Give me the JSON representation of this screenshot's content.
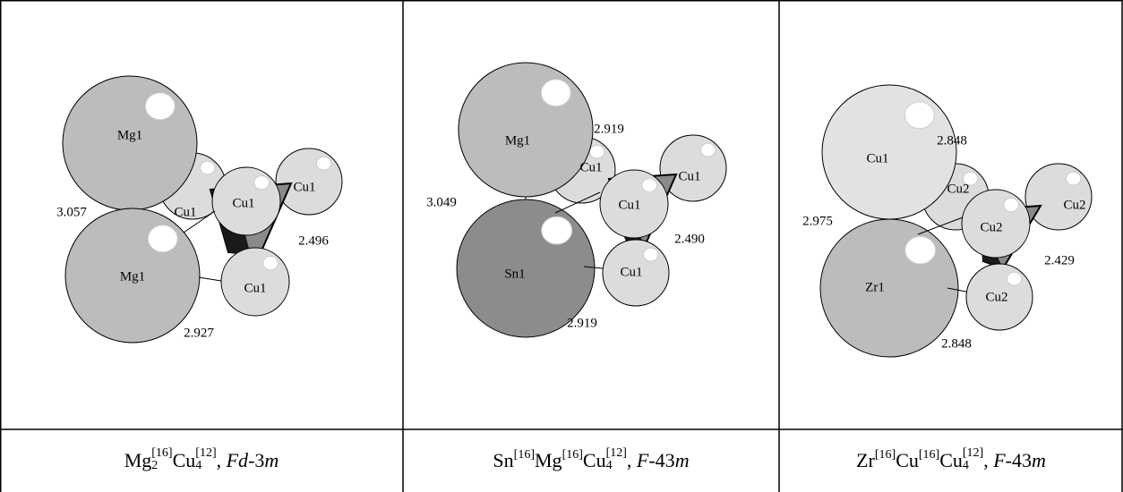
{
  "panels": [
    {
      "atoms": [
        "Mg1",
        "Mg1",
        "Cu1",
        "Cu1",
        "Cu1",
        "Cu1"
      ],
      "distances": [
        "3.057",
        "2.496",
        "2.927"
      ],
      "caption": [
        {
          "text": "Mg"
        },
        {
          "sup": "[16]",
          "sub": "2"
        },
        {
          "text": "Cu"
        },
        {
          "sup": "[12]",
          "sub": "4"
        },
        {
          "text": ", "
        },
        {
          "italic": "Fd"
        },
        {
          "text": "-3"
        },
        {
          "italic": "m"
        }
      ]
    },
    {
      "atoms": [
        "Mg1",
        "Cu1",
        "Cu1",
        "Cu1",
        "Sn1",
        "Cu1"
      ],
      "distances": [
        "2.919",
        "3.049",
        "2.490",
        "2.919"
      ],
      "caption": [
        {
          "text": "Sn"
        },
        {
          "sup": "[16]"
        },
        {
          "text": "Mg"
        },
        {
          "sup": "[16]"
        },
        {
          "text": "Cu"
        },
        {
          "sup": "[12]",
          "sub": "4"
        },
        {
          "text": ", "
        },
        {
          "italic": "F"
        },
        {
          "text": "-43"
        },
        {
          "italic": "m"
        }
      ]
    },
    {
      "atoms": [
        "Cu1",
        "Cu2",
        "Cu2",
        "Cu2",
        "Zr1",
        "Cu2"
      ],
      "distances": [
        "2.848",
        "2.975",
        "2.429",
        "2.848"
      ],
      "caption": [
        {
          "text": "Zr"
        },
        {
          "sup": "[16]"
        },
        {
          "text": "Cu"
        },
        {
          "sup": "[16]"
        },
        {
          "text": "Cu"
        },
        {
          "sup": "[12]",
          "sub": "4"
        },
        {
          "text": ", "
        },
        {
          "italic": "F"
        },
        {
          "text": "-43"
        },
        {
          "italic": "m"
        }
      ]
    }
  ]
}
